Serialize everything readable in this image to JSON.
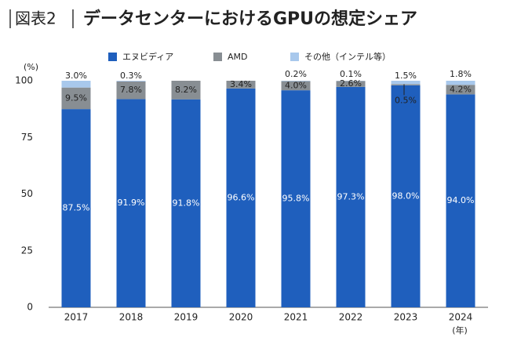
{
  "chart_data": {
    "type": "stacked-bar",
    "label": "図表2",
    "title": "データセンターにおけるGPUの想定シェア",
    "y_unit": "(%)",
    "x_unit": "(年)",
    "categories": [
      "2017",
      "2018",
      "2019",
      "2020",
      "2021",
      "2022",
      "2023",
      "2024"
    ],
    "series": [
      {
        "name": "エヌビディア",
        "color": "#1f5fbd",
        "values": [
          87.5,
          91.9,
          91.8,
          96.6,
          95.8,
          97.3,
          98.0,
          94.0
        ],
        "value_labels": [
          "87.5%",
          "91.9%",
          "91.8%",
          "96.6%",
          "95.8%",
          "97.3%",
          "98.0%",
          "94.0%"
        ]
      },
      {
        "name": "AMD",
        "color": "#888e93",
        "values": [
          9.5,
          7.8,
          8.2,
          3.4,
          4.0,
          2.6,
          0.5,
          4.2
        ],
        "value_labels": [
          "9.5%",
          "7.8%",
          "8.2%",
          "3.4%",
          "4.0%",
          "2.6%",
          "0.5%",
          "4.2%"
        ]
      },
      {
        "name": "その他（インテル等）",
        "color": "#a8c8ec",
        "values": [
          3.0,
          0.3,
          null,
          null,
          0.2,
          0.1,
          1.5,
          1.8
        ],
        "value_labels": [
          "3.0%",
          "0.3%",
          null,
          null,
          "0.2%",
          "0.1%",
          "1.5%",
          "1.8%"
        ]
      }
    ],
    "ylim": [
      0,
      100
    ],
    "yticks": [
      0,
      25,
      50,
      75,
      100
    ]
  }
}
